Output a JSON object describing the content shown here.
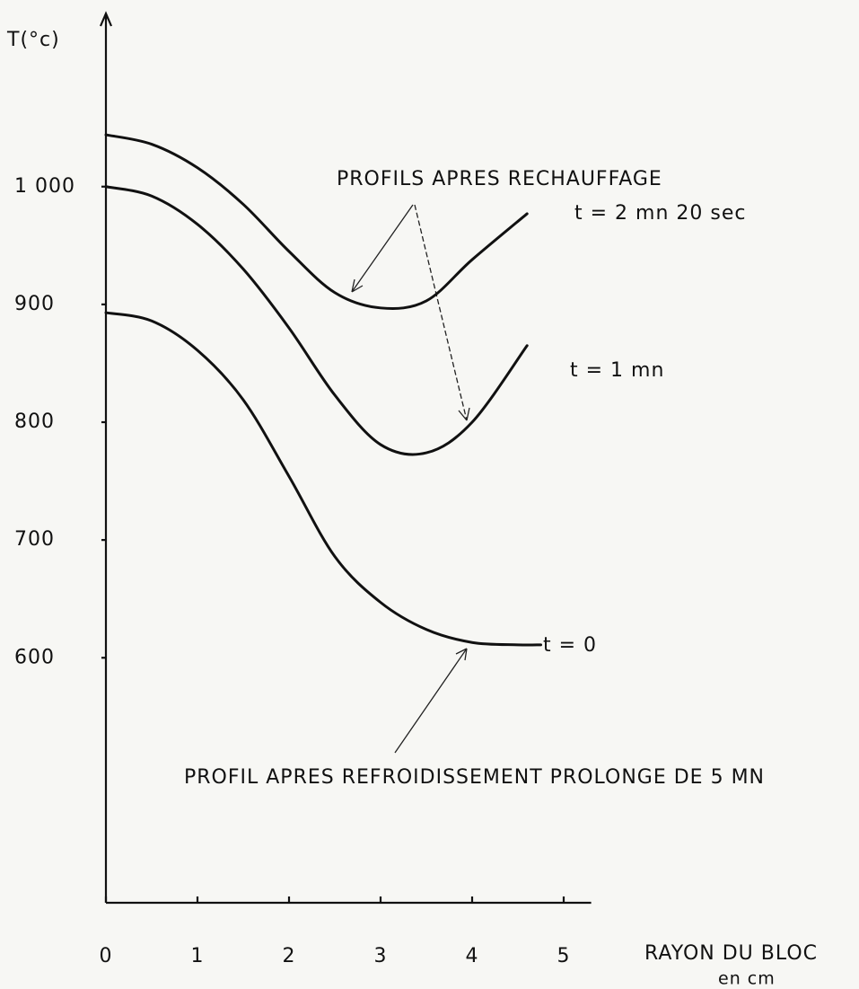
{
  "chart_data": {
    "type": "line",
    "y_label": "T(°c)",
    "x_label": "RAYON DU BLOC",
    "x_unit": "en cm",
    "annotation_top": "PROFILS APRES RECHAUFFAGE",
    "annotation_bottom": "PROFIL APRES REFROIDISSEMENT PROLONGE DE 5 MN",
    "xlim": [
      0,
      5.3
    ],
    "xticks": [
      0,
      1,
      2,
      3,
      4,
      5
    ],
    "ylim": [
      392,
      1147
    ],
    "yticks": [
      600,
      700,
      800,
      900,
      {
        "value": 1000,
        "label": "1 000"
      }
    ],
    "series": [
      {
        "name": "t = 2 mn 20 sec",
        "color": "#111111",
        "x": [
          0,
          0.5,
          1,
          1.5,
          2,
          2.5,
          3,
          3.5,
          4,
          4.6
        ],
        "values": [
          1044,
          1036,
          1016,
          985,
          945,
          910,
          897,
          903,
          938,
          977
        ]
      },
      {
        "name": "t = 1 mn",
        "color": "#111111",
        "x": [
          0,
          0.5,
          1,
          1.5,
          2,
          2.5,
          3,
          3.5,
          4,
          4.6
        ],
        "values": [
          1000,
          992,
          968,
          930,
          880,
          823,
          781,
          774,
          800,
          865
        ]
      },
      {
        "name": "t = 0",
        "color": "#111111",
        "x": [
          0,
          0.5,
          1,
          1.5,
          2,
          2.5,
          3,
          3.5,
          4,
          4.5,
          4.75
        ],
        "values": [
          893,
          886,
          861,
          819,
          754,
          686,
          647,
          624,
          613,
          611,
          611
        ]
      }
    ]
  }
}
